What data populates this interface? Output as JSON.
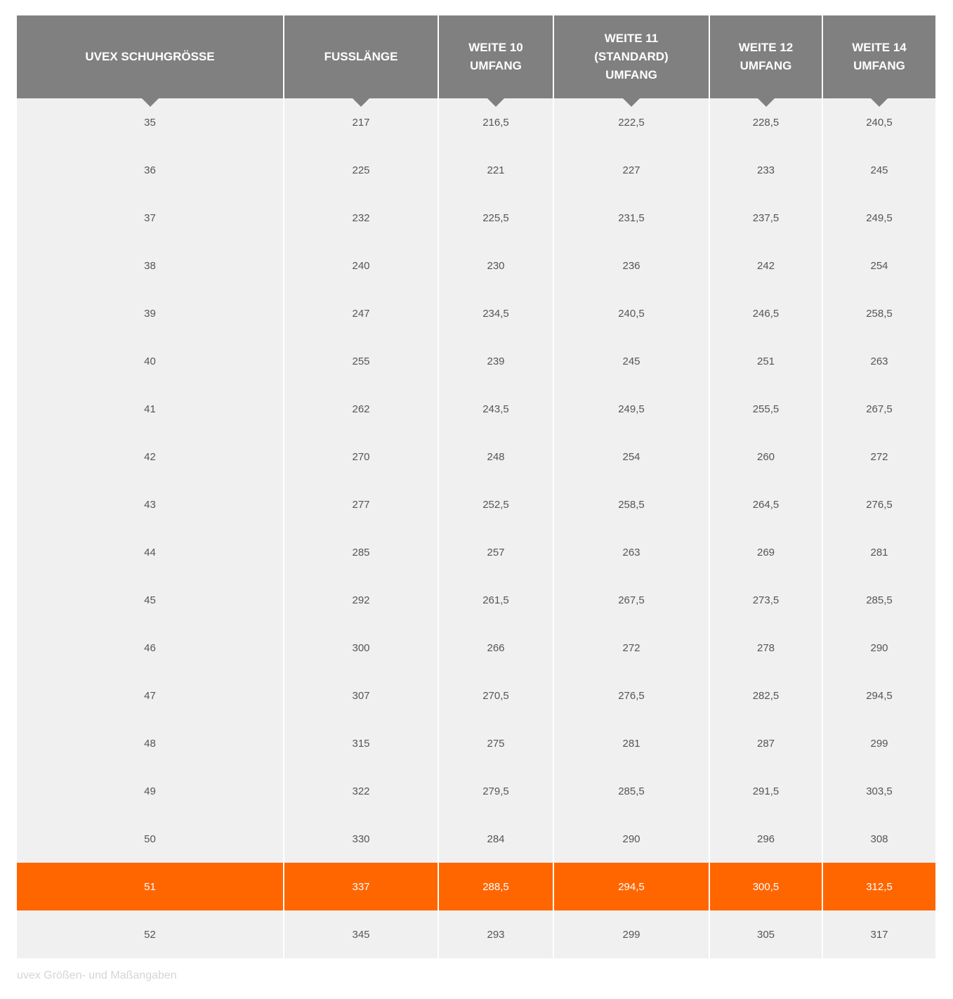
{
  "table": {
    "headers": [
      "UVEX SCHUHGRÖSSE",
      "FUSSLÄNGE",
      "WEITE 10\nUMFANG",
      "WEITE 11\n(STANDARD)\nUMFANG",
      "WEITE 12\nUMFANG",
      "WEITE 14\nUMFANG"
    ],
    "rows": [
      [
        "35",
        "217",
        "216,5",
        "222,5",
        "228,5",
        "240,5"
      ],
      [
        "36",
        "225",
        "221",
        "227",
        "233",
        "245"
      ],
      [
        "37",
        "232",
        "225,5",
        "231,5",
        "237,5",
        "249,5"
      ],
      [
        "38",
        "240",
        "230",
        "236",
        "242",
        "254"
      ],
      [
        "39",
        "247",
        "234,5",
        "240,5",
        "246,5",
        "258,5"
      ],
      [
        "40",
        "255",
        "239",
        "245",
        "251",
        "263"
      ],
      [
        "41",
        "262",
        "243,5",
        "249,5",
        "255,5",
        "267,5"
      ],
      [
        "42",
        "270",
        "248",
        "254",
        "260",
        "272"
      ],
      [
        "43",
        "277",
        "252,5",
        "258,5",
        "264,5",
        "276,5"
      ],
      [
        "44",
        "285",
        "257",
        "263",
        "269",
        "281"
      ],
      [
        "45",
        "292",
        "261,5",
        "267,5",
        "273,5",
        "285,5"
      ],
      [
        "46",
        "300",
        "266",
        "272",
        "278",
        "290"
      ],
      [
        "47",
        "307",
        "270,5",
        "276,5",
        "282,5",
        "294,5"
      ],
      [
        "48",
        "315",
        "275",
        "281",
        "287",
        "299"
      ],
      [
        "49",
        "322",
        "279,5",
        "285,5",
        "291,5",
        "303,5"
      ],
      [
        "50",
        "330",
        "284",
        "290",
        "296",
        "308"
      ],
      [
        "51",
        "337",
        "288,5",
        "294,5",
        "300,5",
        "312,5"
      ],
      [
        "52",
        "345",
        "293",
        "299",
        "305",
        "317"
      ]
    ]
  },
  "caption": "uvex Größen- und Maßangaben"
}
